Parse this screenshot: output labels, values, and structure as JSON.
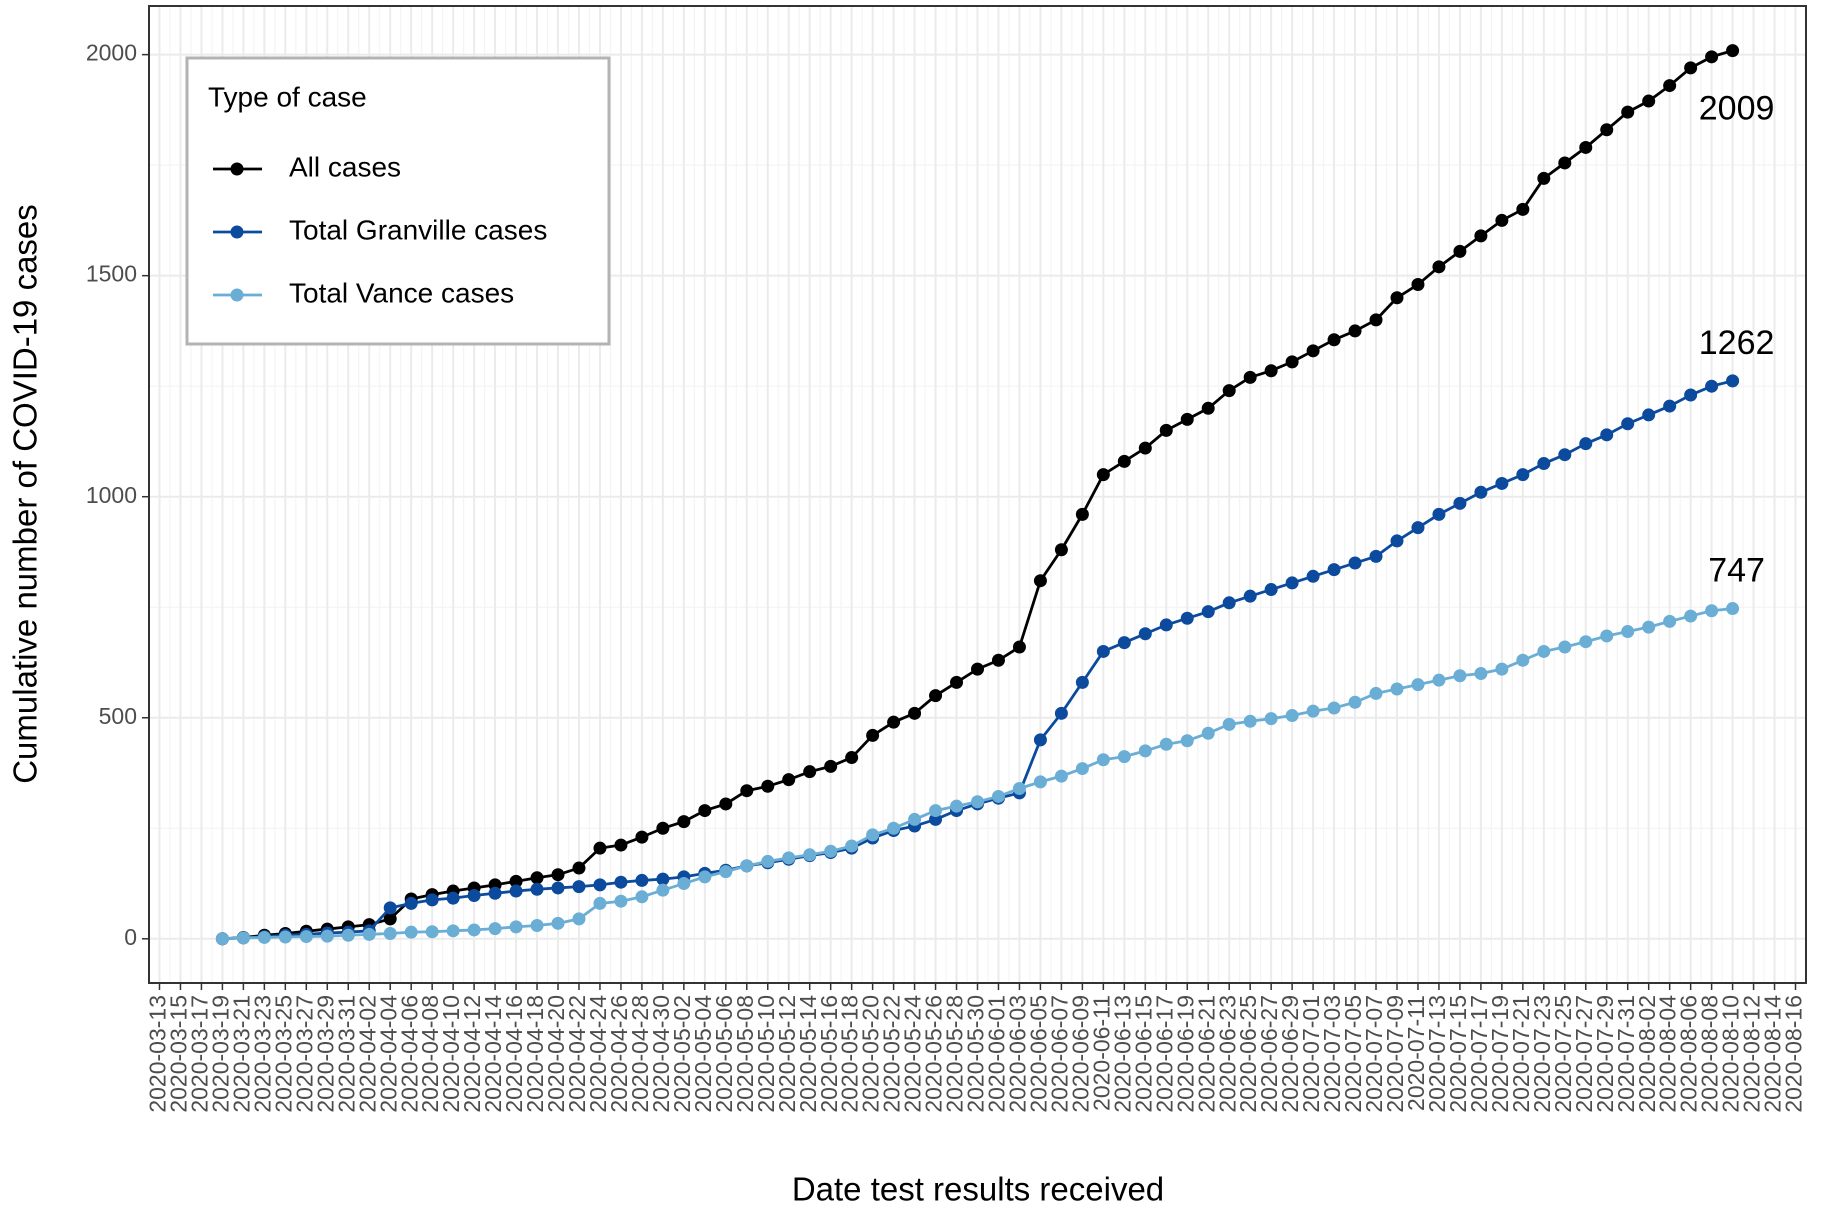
{
  "chart_data": {
    "type": "line",
    "x_label": "Date test results received",
    "y_label": "Cumulative number of COVID-19 cases",
    "legend_title": "Type of case",
    "legend": "top-left",
    "grid": true,
    "x": [
      "2020-03-19",
      "2020-03-21",
      "2020-03-23",
      "2020-03-25",
      "2020-03-27",
      "2020-03-29",
      "2020-03-31",
      "2020-04-02",
      "2020-04-04",
      "2020-04-06",
      "2020-04-08",
      "2020-04-10",
      "2020-04-12",
      "2020-04-14",
      "2020-04-16",
      "2020-04-18",
      "2020-04-20",
      "2020-04-22",
      "2020-04-24",
      "2020-04-26",
      "2020-04-28",
      "2020-04-30",
      "2020-05-02",
      "2020-05-04",
      "2020-05-06",
      "2020-05-08",
      "2020-05-10",
      "2020-05-12",
      "2020-05-14",
      "2020-05-16",
      "2020-05-18",
      "2020-05-20",
      "2020-05-22",
      "2020-05-24",
      "2020-05-26",
      "2020-05-28",
      "2020-05-30",
      "2020-06-01",
      "2020-06-03",
      "2020-06-05",
      "2020-06-07",
      "2020-06-09",
      "2020-06-11",
      "2020-06-13",
      "2020-06-15",
      "2020-06-17",
      "2020-06-19",
      "2020-06-21",
      "2020-06-23",
      "2020-06-25",
      "2020-06-27",
      "2020-06-29",
      "2020-07-01",
      "2020-07-03",
      "2020-07-05",
      "2020-07-07",
      "2020-07-09",
      "2020-07-11",
      "2020-07-13",
      "2020-07-15",
      "2020-07-17",
      "2020-07-19",
      "2020-07-21",
      "2020-07-23",
      "2020-07-25",
      "2020-07-27",
      "2020-07-29",
      "2020-07-31",
      "2020-08-02",
      "2020-08-04",
      "2020-08-06",
      "2020-08-08",
      "2020-08-10"
    ],
    "series": [
      {
        "name": "All cases",
        "color": "#000000",
        "values": [
          0,
          3,
          8,
          12,
          17,
          22,
          27,
          32,
          45,
          90,
          100,
          108,
          115,
          122,
          130,
          138,
          145,
          160,
          205,
          212,
          230,
          250,
          265,
          290,
          305,
          335,
          345,
          360,
          378,
          390,
          410,
          460,
          490,
          510,
          550,
          580,
          610,
          630,
          660,
          810,
          880,
          960,
          1050,
          1080,
          1110,
          1150,
          1175,
          1200,
          1240,
          1270,
          1285,
          1305,
          1330,
          1355,
          1375,
          1400,
          1450,
          1480,
          1520,
          1555,
          1590,
          1625,
          1650,
          1720,
          1755,
          1790,
          1830,
          1870,
          1895,
          1930,
          1970,
          1995,
          2009
        ]
      },
      {
        "name": "Total Granville cases",
        "color": "#0b4a9c",
        "values": [
          0,
          2,
          5,
          8,
          10,
          13,
          15,
          18,
          70,
          80,
          88,
          92,
          98,
          103,
          108,
          112,
          115,
          118,
          122,
          128,
          132,
          135,
          140,
          148,
          155,
          165,
          172,
          180,
          188,
          195,
          205,
          228,
          245,
          255,
          270,
          290,
          305,
          318,
          330,
          450,
          510,
          580,
          650,
          670,
          690,
          710,
          725,
          740,
          760,
          775,
          790,
          805,
          820,
          835,
          850,
          865,
          900,
          930,
          960,
          985,
          1010,
          1030,
          1050,
          1075,
          1095,
          1120,
          1140,
          1165,
          1185,
          1205,
          1230,
          1250,
          1262
        ]
      },
      {
        "name": "Total Vance cases",
        "color": "#6aaed6",
        "values": [
          0,
          2,
          3,
          4,
          5,
          6,
          8,
          10,
          12,
          15,
          16,
          18,
          20,
          23,
          27,
          30,
          35,
          45,
          80,
          85,
          95,
          110,
          125,
          140,
          152,
          165,
          175,
          183,
          190,
          198,
          210,
          235,
          250,
          270,
          290,
          300,
          310,
          322,
          340,
          355,
          368,
          385,
          405,
          412,
          425,
          440,
          448,
          465,
          485,
          492,
          498,
          505,
          515,
          522,
          535,
          555,
          565,
          575,
          585,
          595,
          600,
          610,
          630,
          650,
          660,
          672,
          685,
          695,
          705,
          718,
          730,
          742,
          747
        ]
      }
    ],
    "xlim": [
      "2020-03-12",
      "2020-08-17"
    ],
    "xticks": [
      "2020-03-13",
      "2020-03-15",
      "2020-03-17",
      "2020-03-19",
      "2020-03-21",
      "2020-03-23",
      "2020-03-25",
      "2020-03-27",
      "2020-03-29",
      "2020-03-31",
      "2020-04-02",
      "2020-04-04",
      "2020-04-06",
      "2020-04-08",
      "2020-04-10",
      "2020-04-12",
      "2020-04-14",
      "2020-04-16",
      "2020-04-18",
      "2020-04-20",
      "2020-04-22",
      "2020-04-24",
      "2020-04-26",
      "2020-04-28",
      "2020-04-30",
      "2020-05-02",
      "2020-05-04",
      "2020-05-06",
      "2020-05-08",
      "2020-05-10",
      "2020-05-12",
      "2020-05-14",
      "2020-05-16",
      "2020-05-18",
      "2020-05-20",
      "2020-05-22",
      "2020-05-24",
      "2020-05-26",
      "2020-05-28",
      "2020-05-30",
      "2020-06-01",
      "2020-06-03",
      "2020-06-05",
      "2020-06-07",
      "2020-06-09",
      "2020-06-11",
      "2020-06-13",
      "2020-06-15",
      "2020-06-17",
      "2020-06-19",
      "2020-06-21",
      "2020-06-23",
      "2020-06-25",
      "2020-06-27",
      "2020-06-29",
      "2020-07-01",
      "2020-07-03",
      "2020-07-05",
      "2020-07-07",
      "2020-07-09",
      "2020-07-11",
      "2020-07-13",
      "2020-07-15",
      "2020-07-17",
      "2020-07-19",
      "2020-07-21",
      "2020-07-23",
      "2020-07-25",
      "2020-07-27",
      "2020-07-29",
      "2020-07-31",
      "2020-08-02",
      "2020-08-04",
      "2020-08-06",
      "2020-08-08",
      "2020-08-10",
      "2020-08-12",
      "2020-08-14",
      "2020-08-16"
    ],
    "ylim": [
      -100,
      2110
    ],
    "yticks": [
      0,
      500,
      1000,
      1500,
      2000
    ]
  }
}
